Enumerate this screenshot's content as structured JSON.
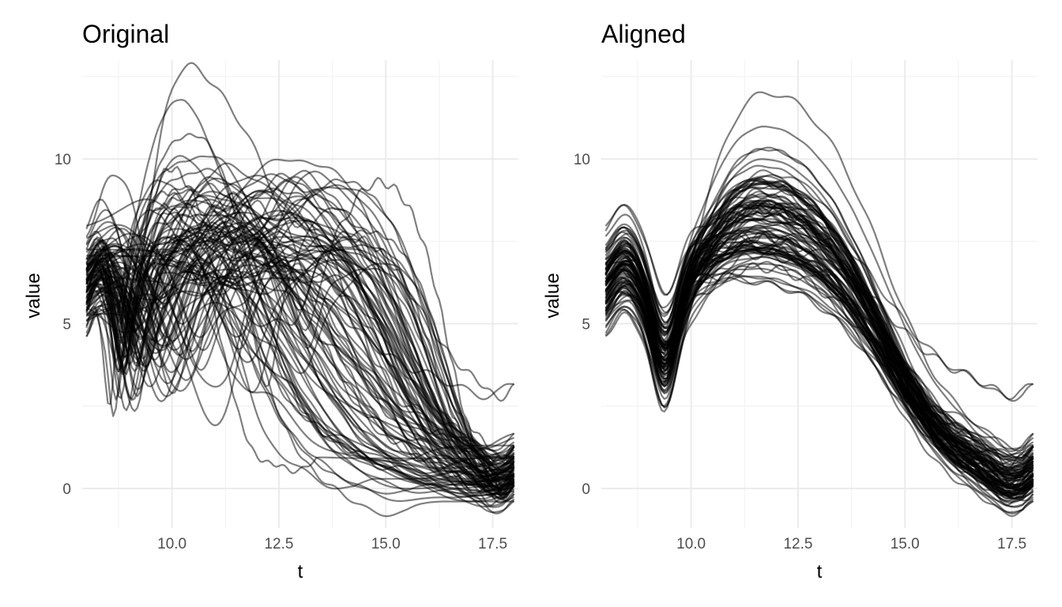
{
  "chart_data": [
    {
      "type": "line",
      "title": "Original",
      "xlabel": "t",
      "ylabel": "value",
      "xlim": [
        7.9,
        18.1
      ],
      "ylim": [
        -1.2,
        13.0
      ],
      "x_ticks": [
        10.0,
        12.5,
        15.0,
        17.5
      ],
      "x_tick_labels": [
        "10.0",
        "12.5",
        "15.0",
        "17.5"
      ],
      "y_ticks": [
        0,
        5,
        10
      ],
      "y_tick_labels": [
        "0",
        "5",
        "10"
      ],
      "grid": true,
      "legend": "none",
      "line_color": "#000000",
      "line_alpha": 0.5,
      "n_curves": 100,
      "t_range": [
        8,
        18
      ],
      "typical_curve": {
        "start_value_range": [
          4.0,
          7.8
        ],
        "peak_t_range": [
          10.5,
          15.5
        ],
        "peak_value_range": [
          6.5,
          12.7
        ],
        "end_value_range": [
          -0.6,
          3.6
        ]
      }
    },
    {
      "type": "line",
      "title": "Aligned",
      "xlabel": "t",
      "ylabel": "value",
      "xlim": [
        7.9,
        18.1
      ],
      "ylim": [
        -1.2,
        13.0
      ],
      "x_ticks": [
        10.0,
        12.5,
        15.0,
        17.5
      ],
      "x_tick_labels": [
        "10.0",
        "12.5",
        "15.0",
        "17.5"
      ],
      "y_ticks": [
        0,
        5,
        10
      ],
      "y_tick_labels": [
        "0",
        "5",
        "10"
      ],
      "grid": true,
      "legend": "none",
      "line_color": "#000000",
      "line_alpha": 0.5,
      "n_curves": 100,
      "t_range": [
        8,
        18
      ],
      "typical_curve": {
        "start_value_range": [
          4.0,
          7.8
        ],
        "dip_t": 9.4,
        "dip_value_range": [
          2.2,
          4.5
        ],
        "peak_t": 11.5,
        "peak_value_range": [
          6.5,
          12.7
        ],
        "end_value_range": [
          -0.6,
          3.6
        ]
      }
    }
  ]
}
